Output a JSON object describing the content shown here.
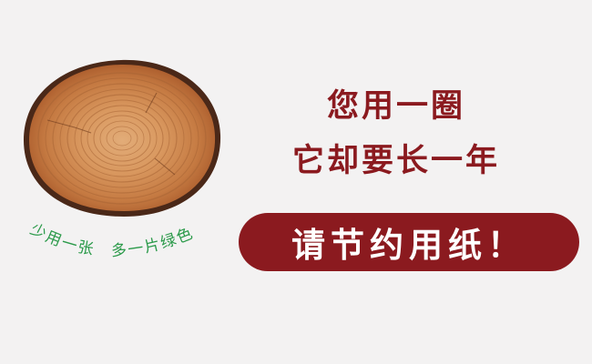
{
  "slogan_line1": "您用一圈",
  "slogan_line2": "它却要长一年",
  "call_to_action": "请节约用纸！",
  "curved_slogan": "少用一张　多一片绿色",
  "colors": {
    "background": "#f3f2f2",
    "headline": "#8b1a1f",
    "pill_background": "#8b1a1f",
    "pill_text": "#ffffff",
    "curved_text": "#2b9a4a",
    "wood_light": "#dba06a",
    "wood_dark": "#a8592a",
    "bark": "#4a2818"
  },
  "icons": [
    "tree-stump-icon"
  ]
}
